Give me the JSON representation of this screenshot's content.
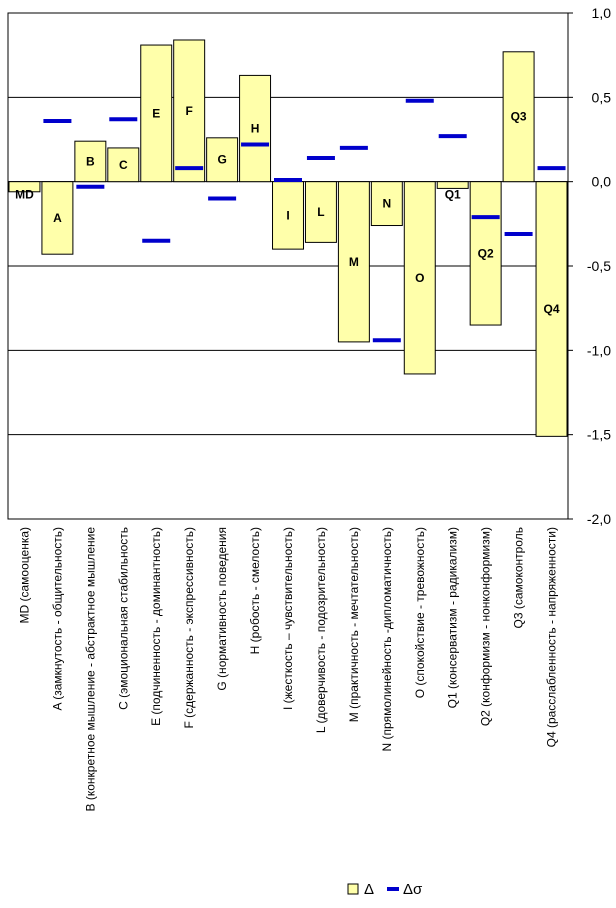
{
  "chart_data": {
    "type": "bar",
    "categories": [
      "MD",
      "A",
      "B",
      "C",
      "E",
      "F",
      "G",
      "H",
      "I",
      "L",
      "M",
      "N",
      "O",
      "Q1",
      "Q2",
      "Q3",
      "Q4"
    ],
    "bar_labels": [
      "MD",
      "A",
      "B",
      "C",
      "E",
      "F",
      "G",
      "H",
      "I",
      "L",
      "M",
      "N",
      "O",
      "Q1",
      "Q2",
      "Q3",
      "Q4"
    ],
    "tick_labels": [
      "MD (самооценка)",
      "A (замкнутость - общительность)",
      "B (конкретное мышление - абстрактное мышление",
      "C (эмоциональная стабильность",
      "E (подчиненность - доминантность)",
      "F (сдержанность - экспрессивность)",
      "G (нормативность поведения",
      "H (робость - смелость)",
      "I (жесткость – чувствительность)",
      "L (доверчивость - подозрительность)",
      "M (практичность - мечтательность)",
      "N (прямолинейность -дипломатичность)",
      "O (спокойствие - тревожность)",
      "Q1 (консерватизм - радикализм)",
      "Q2 (конформизм - нонконформизм)",
      "Q3 (самоконтроль",
      "Q4 (расслабленность - напряженности)"
    ],
    "series": [
      {
        "name": "Δ",
        "kind": "bar",
        "color": "#ffffaa",
        "values": [
          -0.06,
          -0.43,
          0.24,
          0.2,
          0.81,
          0.84,
          0.26,
          0.63,
          -0.4,
          -0.36,
          -0.95,
          -0.26,
          -1.14,
          -0.04,
          -0.85,
          0.77,
          -1.51
        ]
      },
      {
        "name": "Δσ",
        "kind": "marker",
        "color": "#0000cc",
        "values": [
          null,
          0.36,
          -0.03,
          0.37,
          -0.35,
          0.08,
          -0.1,
          0.22,
          0.01,
          0.14,
          0.2,
          -0.94,
          0.48,
          0.27,
          -0.21,
          -0.31,
          0.08
        ]
      }
    ],
    "y_ticks": [
      "1,0",
      "0,5",
      "0,0",
      "-0,5",
      "-1,0",
      "-1,5",
      "-2,0"
    ],
    "y_tick_values": [
      1.0,
      0.5,
      0.0,
      -0.5,
      -1.0,
      -1.5,
      -2.0
    ],
    "ylim": [
      -2.0,
      1.0
    ],
    "y_axis_side": "right",
    "grid": true,
    "legend_position": "bottom"
  }
}
